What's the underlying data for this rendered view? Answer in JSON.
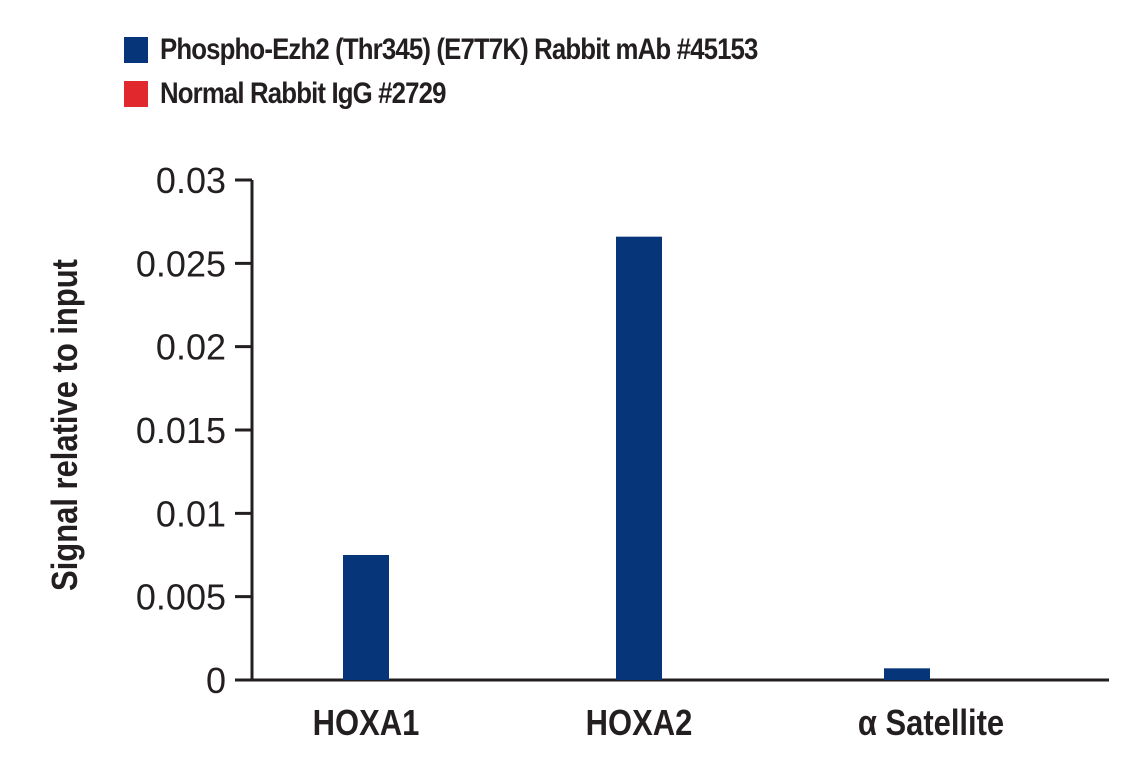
{
  "legend": {
    "items": [
      {
        "label": "Phospho-Ezh2 (Thr345) (E7T7K) Rabbit mAb #45153",
        "color": "#06357a"
      },
      {
        "label": "Normal Rabbit IgG #2729",
        "color": "#e1282d"
      }
    ]
  },
  "chart_data": {
    "type": "bar",
    "title": "",
    "xlabel": "",
    "ylabel": "Signal relative to input",
    "ylim": [
      0,
      0.03
    ],
    "yticks": [
      "0",
      "0.005",
      "0.01",
      "0.015",
      "0.02",
      "0.025",
      "0.03"
    ],
    "grid": false,
    "legend_position": "top-left",
    "categories": [
      "HOXA1",
      "HOXA2",
      "α Satellite"
    ],
    "series": [
      {
        "name": "Phospho-Ezh2 (Thr345) (E7T7K) Rabbit mAb #45153",
        "color": "#06357a",
        "values": [
          0.0075,
          0.0266,
          0.0007
        ]
      },
      {
        "name": "Normal Rabbit IgG #2729",
        "color": "#e1282d",
        "values": [
          0.0,
          0.0,
          0.0
        ]
      }
    ]
  }
}
